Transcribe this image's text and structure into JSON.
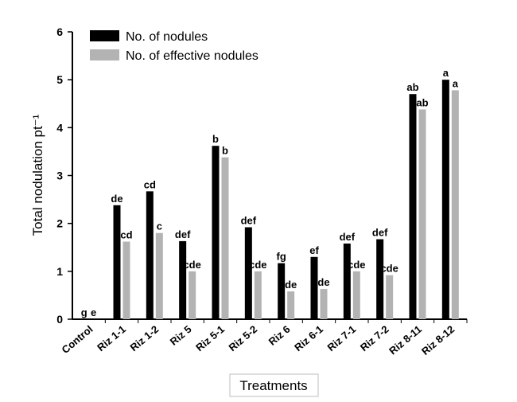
{
  "chart_data": {
    "type": "bar",
    "xlabel": "Treatments",
    "ylabel": "Total nodulation pt⁻¹",
    "ylim": [
      0,
      6
    ],
    "y_ticks": [
      "0",
      "1",
      "2",
      "3",
      "4",
      "5",
      "6"
    ],
    "grid": false,
    "legend_position": "top-left",
    "categories": [
      "Control",
      "Riz 1-1",
      "Riz 1-2",
      "Riz 5",
      "Riz 5-1",
      "Riz 5-2",
      "Riz 6",
      "Riz 6-1",
      "Riz 7-1",
      "Riz 7-2",
      "Riz 8-11",
      "Riz 8-12"
    ],
    "series": [
      {
        "name": "No. of nodules",
        "color": "#000000",
        "values": [
          0,
          2.38,
          2.67,
          1.63,
          3.62,
          1.92,
          1.17,
          1.3,
          1.58,
          1.67,
          4.7,
          5.0
        ],
        "labels": [
          "g",
          "de",
          "cd",
          "def",
          "b",
          "def",
          "fg",
          "ef",
          "def",
          "def",
          "ab",
          "a"
        ]
      },
      {
        "name": "No. of effective nodules",
        "color": "#b3b3b3",
        "values": [
          0,
          1.62,
          1.8,
          1.0,
          3.38,
          1.0,
          0.58,
          0.63,
          1.0,
          0.92,
          4.38,
          4.78
        ],
        "labels": [
          "e",
          "cd",
          "c",
          "cde",
          "b",
          "cde",
          "de",
          "de",
          "cde",
          "cde",
          "ab",
          "a"
        ]
      }
    ]
  }
}
